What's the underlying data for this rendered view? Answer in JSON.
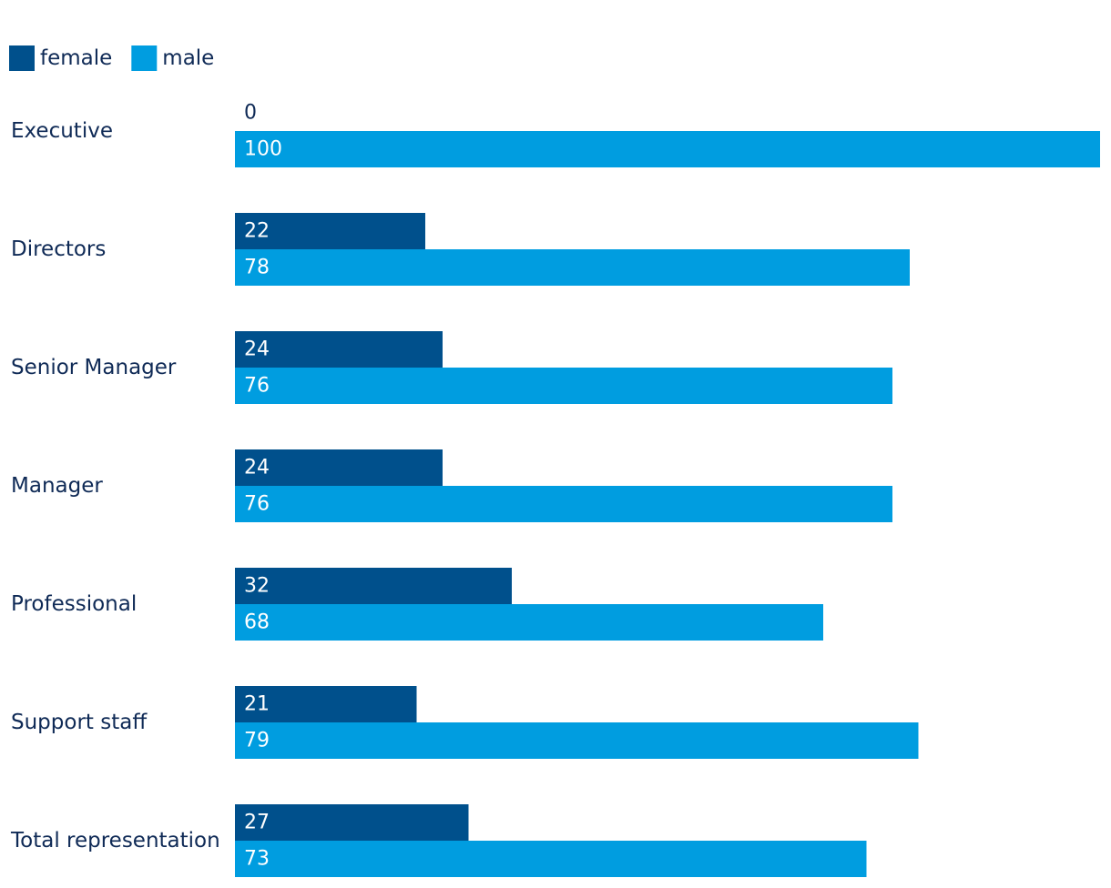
{
  "chart_data": {
    "type": "bar",
    "orientation": "horizontal",
    "categories": [
      "Executive",
      "Directors",
      "Senior Manager",
      "Manager",
      "Professional",
      "Support staff",
      "Total representation"
    ],
    "series": [
      {
        "name": "female",
        "color": "#00508c",
        "values": [
          0,
          22,
          24,
          24,
          32,
          21,
          27
        ]
      },
      {
        "name": "male",
        "color": "#009de0",
        "values": [
          100,
          78,
          76,
          76,
          68,
          79,
          73
        ]
      }
    ],
    "xlim": [
      0,
      100
    ],
    "title": "",
    "xlabel": "",
    "ylabel": "",
    "grid": false,
    "legend_position": "top-left",
    "value_labels": true,
    "text_color": "#0f2a56",
    "label_color_inside": "#ffffff"
  }
}
